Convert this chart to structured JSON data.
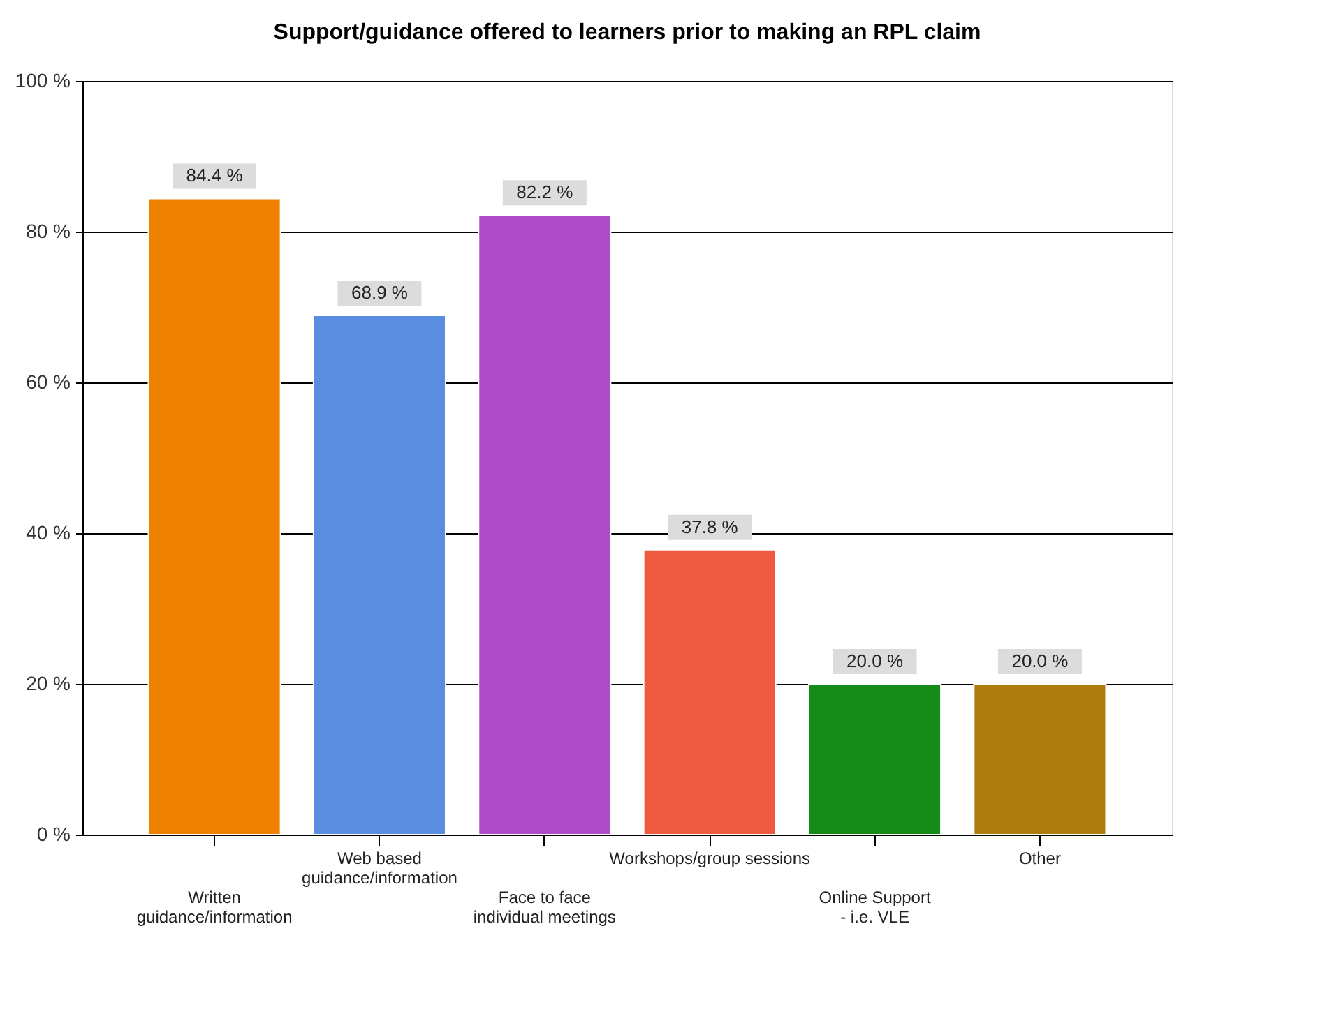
{
  "chart_data": {
    "type": "bar",
    "title": "Support/guidance offered to learners prior to making an RPL claim",
    "categories": [
      "Written\nguidance/information",
      "Web based\nguidance/information",
      "Face to face\nindividual meetings",
      "Workshops/group sessions",
      "Online Support\n- i.e. VLE",
      "Other"
    ],
    "values": [
      84.4,
      68.9,
      82.2,
      37.8,
      20.0,
      20.0
    ],
    "colors": [
      "#ee8200",
      "#5a8de0",
      "#ad4cc6",
      "#ee5a40",
      "#168a16",
      "#ac7c0c"
    ],
    "value_labels": [
      "84.4 %",
      "68.9 %",
      "82.2 %",
      "37.8 %",
      "20.0 %",
      "20.0 %"
    ],
    "ylim": [
      0,
      100
    ],
    "yticks": [
      {
        "value": 0,
        "label": "0 %"
      },
      {
        "value": 20,
        "label": "20 %"
      },
      {
        "value": 40,
        "label": "40 %"
      },
      {
        "value": 60,
        "label": "60 %"
      },
      {
        "value": 80,
        "label": "80 %"
      },
      {
        "value": 100,
        "label": "100 %"
      }
    ],
    "grid": "y"
  }
}
